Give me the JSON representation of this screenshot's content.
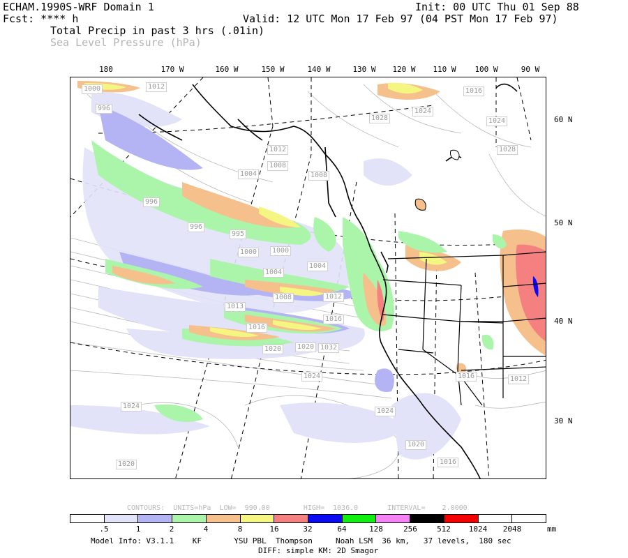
{
  "header": {
    "model": "ECHAM.1990S-WRF Domain 1",
    "init": "Init: 00 UTC Thu 01 Sep 88",
    "fcst": "Fcst: **** h",
    "valid": "Valid: 12 UTC Mon 17 Feb 97 (04 PST Mon 17 Feb 97)",
    "field1": "Total Precip in past 3 hrs (.01in)",
    "field2": "Sea Level Pressure (hPa)"
  },
  "map": {
    "lon_labels": [
      "180",
      "170 W",
      "160 W",
      "150 W",
      "140 W",
      "130 W",
      "120 W",
      "110 W",
      "100 W",
      "90 W"
    ],
    "lat_labels": [
      "60 N",
      "50 N",
      "40 N",
      "30 N"
    ],
    "pressure_labels": [
      "1000",
      "1012",
      "996",
      "1016",
      "1024",
      "1028",
      "1024",
      "1028",
      "1012",
      "1008",
      "1004",
      "996",
      "996",
      "995",
      "1000",
      "1000",
      "1004",
      "1004",
      "1008",
      "1012",
      "1016",
      "1013",
      "1016",
      "1020",
      "1020",
      "1032",
      "1024",
      "1024",
      "1020",
      "1016",
      "1012",
      "1024",
      "1020",
      "1016",
      "1008"
    ]
  },
  "legend": {
    "contours_line": "CONTOURS:  UNITS=hPa  LOW=  990.00        HIGH=  1036.0       INTERVAL=    2.0000",
    "colors": [
      "#ffffff",
      "#e2e2f8",
      "#b4b4f5",
      "#aaf5aa",
      "#f5c08c",
      "#f5f582",
      "#f58080",
      "#0a0af5",
      "#10f010",
      "#f582f5",
      "#000000",
      "#f50000",
      "#ffffff",
      "#ffffff"
    ],
    "ticks": [
      ".5",
      "1",
      "2",
      "4",
      "8",
      "16",
      "32",
      "64",
      "128",
      "256",
      "512",
      "1024",
      "2048"
    ],
    "units": "mm"
  },
  "footer": {
    "model_info": "Model Info: V3.1.1    KF       YSU PBL  Thompson     Noah LSM  36 km,   37 levels,  180 sec",
    "diff": "DIFF: simple KM: 2D Smagor"
  }
}
